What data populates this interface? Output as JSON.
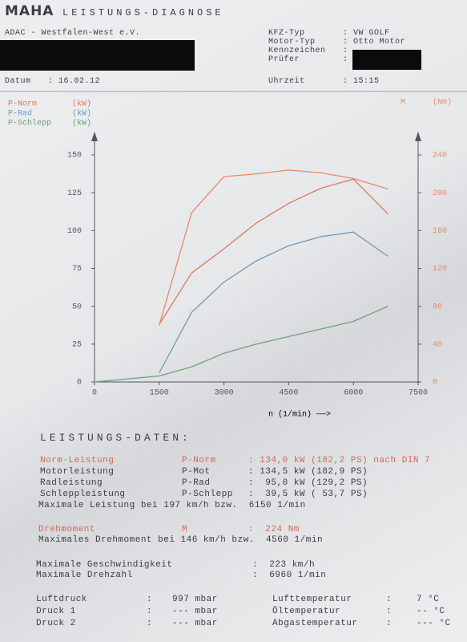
{
  "header": {
    "logo": "MAHA",
    "title": "LEISTUNGS-DIAGNOSE",
    "company": "ADAC - Westfalen-West e.V.",
    "fields": [
      {
        "label": "KFZ-Typ",
        "value": ": VW GOLF"
      },
      {
        "label": "Motor-Typ",
        "value": ": Otto Motor"
      },
      {
        "label": "Kennzeichen",
        "value": ":"
      },
      {
        "label": "Prüfer",
        "value": ":"
      }
    ],
    "date": {
      "label": "Datum",
      "value": ": 16.02.12"
    },
    "time": {
      "label": "Uhrzeit",
      "value": ": 15:15"
    }
  },
  "chart_data": {
    "type": "line",
    "x_label": "n (1/min) ——>",
    "x": [
      0,
      1500,
      2250,
      3000,
      3750,
      4500,
      5250,
      6000,
      6800
    ],
    "xlim": [
      0,
      7500
    ],
    "xticks": [
      0,
      1500,
      3000,
      4500,
      6000,
      7500
    ],
    "ylim": [
      0,
      150
    ],
    "yticks": [
      0,
      25,
      50,
      75,
      100,
      125,
      150
    ],
    "y2lim": [
      0,
      240
    ],
    "y2ticks": [
      0,
      40,
      80,
      120,
      160,
      200,
      240
    ],
    "series": [
      {
        "name": "P-Norm",
        "unit": "(kW)",
        "color": "#e0785e",
        "values": [
          null,
          38,
          72,
          88,
          105,
          118,
          128,
          134,
          111
        ]
      },
      {
        "name": "P-Rad",
        "unit": "(kW)",
        "color": "#6f9ac0",
        "values": [
          null,
          6,
          46,
          66,
          80,
          90,
          96,
          99,
          83
        ]
      },
      {
        "name": "P-Schlepp",
        "unit": "(kW)",
        "color": "#6fa27a",
        "values": [
          0,
          4,
          10,
          19,
          25,
          30,
          35,
          40,
          50
        ]
      },
      {
        "name": "M",
        "unit": "(Nm)",
        "color": "#e88a6a",
        "axis": "y2",
        "values": [
          null,
          60,
          179,
          217,
          220,
          224,
          221,
          215,
          204
        ]
      }
    ]
  },
  "results": {
    "title": "LEISTUNGS-DATEN:",
    "rows": [
      [
        "Norm-Leistung",
        "P-Norm",
        ": 134,0 kW (182,2 PS) nach DIN 7"
      ],
      [
        "Motorleistung",
        "P-Mot",
        ": 134,5 kW (182,9 PS)"
      ],
      [
        "Radleistung",
        "P-Rad",
        ":  95,0 kW (129,2 PS)"
      ],
      [
        "Schleppleistung",
        "P-Schlepp",
        ":  39,5 kW ( 53,7 PS)"
      ]
    ],
    "max_power": "Maximale Leistung bei 197 km/h bzw.  6150 1/min",
    "torque": [
      "Drehmoment",
      "M",
      ":  224 Nm"
    ],
    "max_torque": "Maximales Drehmoment bei 146 km/h bzw.  4560 1/min",
    "max_speed": [
      "Maximale Geschwindigkeit",
      ":  223 km/h"
    ],
    "max_rpm": [
      "Maximale Drehzahl",
      ":  6960 1/min"
    ]
  },
  "conditions": [
    [
      "Luftdruck",
      ":",
      "997 mbar",
      "Lufttemperatur",
      ":",
      "7 °C"
    ],
    [
      "Druck 1",
      ":",
      "--- mbar",
      "Öltemperatur",
      ":",
      "-- °C"
    ],
    [
      "Druck 2",
      ":",
      "--- mbar",
      "Abgastemperatur",
      ":",
      "--- °C"
    ]
  ]
}
